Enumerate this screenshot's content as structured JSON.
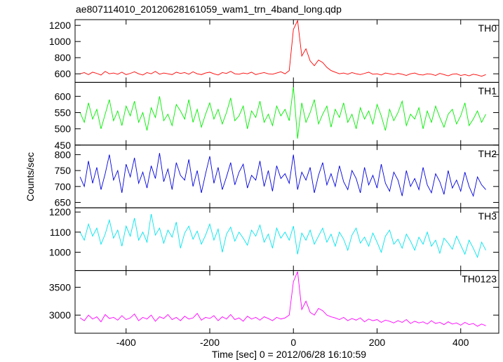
{
  "chart_data": {
    "type": "line",
    "title": "ae807114010_20120628161059_wam1_trn_4band_long.qdp",
    "ylabel": "Counts/sec",
    "xlabel": "Time [sec] 0 = 2012/06/28 16:10:59",
    "xlim": [
      -522,
      491
    ],
    "xticks": [
      -400,
      -200,
      0,
      200,
      400
    ],
    "x": [
      -510,
      -500,
      -490,
      -480,
      -470,
      -460,
      -450,
      -440,
      -430,
      -420,
      -410,
      -400,
      -390,
      -380,
      -370,
      -360,
      -350,
      -340,
      -330,
      -320,
      -310,
      -300,
      -290,
      -280,
      -270,
      -260,
      -250,
      -240,
      -230,
      -220,
      -210,
      -200,
      -190,
      -180,
      -170,
      -160,
      -150,
      -140,
      -130,
      -120,
      -110,
      -100,
      -90,
      -80,
      -70,
      -60,
      -50,
      -40,
      -30,
      -20,
      -10,
      0,
      10,
      20,
      30,
      40,
      50,
      60,
      70,
      80,
      90,
      100,
      110,
      120,
      130,
      140,
      150,
      160,
      170,
      180,
      190,
      200,
      210,
      220,
      230,
      240,
      250,
      260,
      270,
      280,
      290,
      300,
      310,
      320,
      330,
      340,
      350,
      360,
      370,
      380,
      390,
      400,
      410,
      420,
      430,
      440,
      450,
      460
    ],
    "panels": [
      {
        "name": "TH0",
        "color": "#ff0000",
        "ylim": [
          494,
          1271
        ],
        "yticks": [
          600,
          800,
          1000,
          1200
        ],
        "values": [
          600,
          615,
          590,
          620,
          605,
          585,
          630,
          600,
          610,
          595,
          620,
          590,
          605,
          625,
          600,
          585,
          615,
          600,
          630,
          595,
          610,
          600,
          590,
          620,
          605,
          615,
          595,
          625,
          600,
          590,
          610,
          620,
          600,
          585,
          615,
          605,
          630,
          600,
          595,
          610,
          600,
          620,
          590,
          605,
          615,
          600,
          595,
          610,
          625,
          600,
          640,
          1150,
          1260,
          820,
          910,
          760,
          700,
          770,
          740,
          680,
          640,
          620,
          600,
          610,
          595,
          615,
          600,
          590,
          605,
          620,
          595,
          600,
          585,
          610,
          600,
          590,
          605,
          595,
          580,
          600,
          610,
          590,
          585,
          600,
          595,
          580,
          605,
          590,
          575,
          595,
          600,
          580,
          590,
          575,
          595,
          585,
          570,
          590
        ]
      },
      {
        "name": "TH1",
        "color": "#00ee00",
        "ylim": [
          450,
          643
        ],
        "yticks": [
          450,
          500,
          550,
          600
        ],
        "values": [
          550,
          520,
          580,
          530,
          560,
          500,
          545,
          590,
          525,
          555,
          510,
          570,
          540,
          585,
          520,
          550,
          495,
          565,
          535,
          600,
          525,
          545,
          510,
          575,
          555,
          530,
          590,
          520,
          560,
          505,
          545,
          580,
          530,
          560,
          515,
          550,
          595,
          525,
          540,
          570,
          500,
          555,
          535,
          585,
          520,
          545,
          510,
          570,
          540,
          560,
          525,
          630,
          470,
          580,
          520,
          550,
          590,
          515,
          545,
          570,
          505,
          560,
          535,
          580,
          520,
          545,
          500,
          565,
          530,
          555,
          515,
          575,
          540,
          495,
          560,
          525,
          550,
          585,
          510,
          545,
          530,
          565,
          500,
          555,
          520,
          570,
          535,
          505,
          545,
          560,
          515,
          540,
          580,
          510,
          530,
          555,
          520,
          545
        ]
      },
      {
        "name": "TH2",
        "color": "#0000dd",
        "ylim": [
          633,
          830
        ],
        "yticks": [
          650,
          700,
          750,
          800
        ],
        "values": [
          730,
          700,
          780,
          710,
          760,
          690,
          740,
          800,
          720,
          750,
          680,
          770,
          730,
          790,
          710,
          745,
          695,
          765,
          725,
          805,
          715,
          755,
          690,
          775,
          735,
          720,
          785,
          700,
          750,
          680,
          740,
          795,
          710,
          760,
          690,
          730,
          775,
          705,
          745,
          770,
          695,
          735,
          720,
          780,
          700,
          750,
          685,
          765,
          725,
          740,
          710,
          800,
          690,
          745,
          720,
          760,
          680,
          735,
          775,
          705,
          740,
          700,
          765,
          715,
          690,
          750,
          725,
          680,
          760,
          705,
          735,
          695,
          770,
          710,
          685,
          745,
          720,
          670,
          750,
          700,
          725,
          690,
          760,
          705,
          680,
          740,
          715,
          675,
          750,
          695,
          720,
          685,
          745,
          700,
          670,
          730,
          705,
          690
        ]
      },
      {
        "name": "TH3",
        "color": "#00e5ee",
        "ylim": [
          909,
          1221
        ],
        "yticks": [
          1000,
          1100,
          1200
        ],
        "values": [
          1100,
          1060,
          1140,
          1080,
          1120,
          1040,
          1090,
          1160,
          1070,
          1110,
          1030,
          1130,
          1080,
          1170,
          1060,
          1100,
          1050,
          1190,
          1085,
          1120,
          1045,
          1110,
          1075,
          1150,
          1020,
          1095,
          1130,
          1065,
          1105,
          1040,
          1085,
          1140,
          1060,
          1115,
          1000,
          1090,
          1125,
          1055,
          1100,
          1070,
          1035,
          1110,
          1080,
          1135,
          1050,
          1090,
          1020,
          1120,
          1070,
          1100,
          1060,
          1130,
          990,
          1095,
          1060,
          1110,
          1040,
          1080,
          1120,
          1050,
          1090,
          1030,
          1100,
          1065,
          1010,
          1085,
          1120,
          1045,
          1075,
          1030,
          1095,
          1050,
          1000,
          1080,
          1110,
          1040,
          1065,
          1020,
          1090,
          1055,
          1010,
          1075,
          1040,
          1100,
          1030,
          1060,
          995,
          1070,
          1045,
          1015,
          1080,
          1035,
          990,
          1060,
          1020,
          975,
          1050,
          1010
        ]
      },
      {
        "name": "TH0123",
        "color": "#ff00ff",
        "ylim": [
          2675,
          3800
        ],
        "yticks": [
          3000,
          3500
        ],
        "values": [
          2950,
          2900,
          3000,
          2930,
          2970,
          2880,
          3010,
          2940,
          2960,
          2910,
          2990,
          2920,
          2950,
          3020,
          2900,
          2960,
          2930,
          3000,
          2890,
          2970,
          2940,
          3010,
          2920,
          2960,
          2900,
          2980,
          2930,
          2950,
          3030,
          2910,
          2960,
          2940,
          2990,
          2900,
          2970,
          2930,
          3010,
          2920,
          2950,
          2890,
          2980,
          2930,
          2960,
          2910,
          2970,
          2940,
          2900,
          2960,
          2930,
          2950,
          3000,
          3600,
          3780,
          3100,
          3250,
          3050,
          3000,
          3120,
          3080,
          3000,
          2970,
          2950,
          2920,
          2960,
          2900,
          2940,
          2910,
          2950,
          2880,
          2930,
          2900,
          2920,
          2870,
          2910,
          2890,
          2860,
          2900,
          2870,
          2920,
          2850,
          2890,
          2860,
          2880,
          2840,
          2900,
          2850,
          2870,
          2830,
          2880,
          2840,
          2860,
          2820,
          2870,
          2830,
          2850,
          2800,
          2840,
          2810
        ]
      }
    ]
  }
}
